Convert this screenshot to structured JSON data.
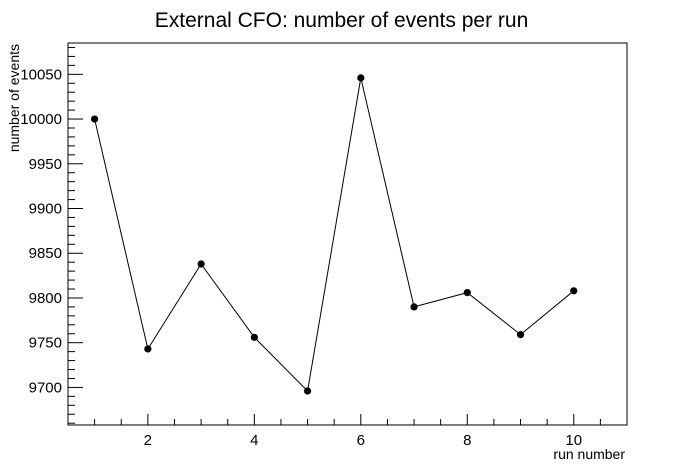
{
  "chart_data": {
    "type": "line",
    "title": "External CFO: number of events per run",
    "xlabel": "run number",
    "ylabel": "number of events",
    "xlim": [
      0.5,
      11.0
    ],
    "ylim": [
      9658,
      10085
    ],
    "x_major_ticks": [
      2,
      4,
      6,
      8,
      10
    ],
    "x_tick_labels": [
      "2",
      "4",
      "6",
      "8",
      "10"
    ],
    "y_major_ticks": [
      9700,
      9750,
      9800,
      9850,
      9900,
      9950,
      10000,
      10050
    ],
    "y_tick_labels": [
      "9700",
      "9750",
      "9800",
      "9850",
      "9900",
      "9950",
      "10000",
      "10050"
    ],
    "grid": false,
    "legend": "none",
    "series": [
      {
        "x": [
          1,
          2,
          3,
          4,
          5,
          6,
          7,
          8,
          9,
          10
        ],
        "values": [
          10000,
          9743,
          9838,
          9756,
          9696,
          10046,
          9790,
          9806,
          9759,
          9808
        ]
      }
    ],
    "colors": {
      "line": "#000000",
      "marker": "#000000",
      "axes": "#000000",
      "background": "#ffffff"
    }
  }
}
